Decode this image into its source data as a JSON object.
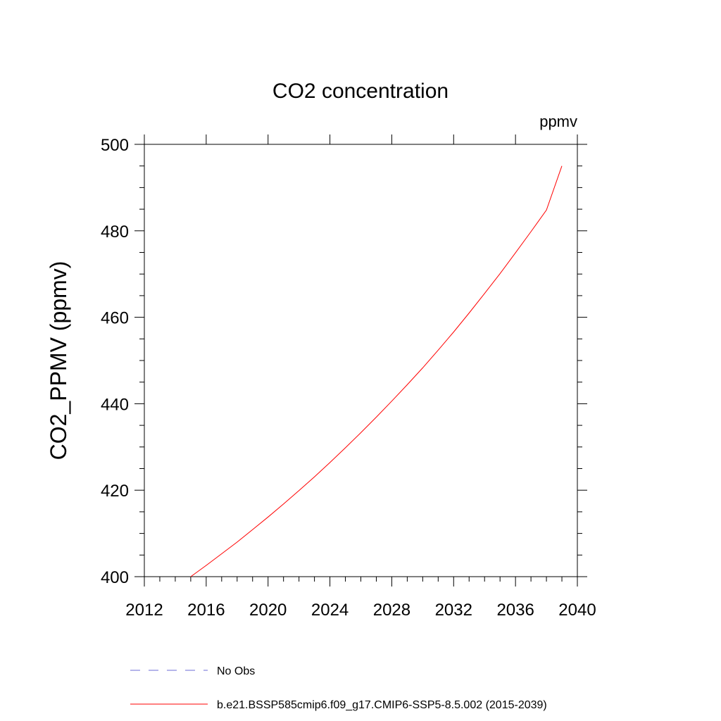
{
  "chart_data": {
    "type": "line",
    "title": "CO2 concentration",
    "units_label": "ppmv",
    "xlabel": "",
    "ylabel": "CO2_PPMV  (ppmv)",
    "xlim": [
      2012,
      2040
    ],
    "ylim": [
      400,
      500
    ],
    "x_ticks": [
      "2012",
      "2016",
      "2020",
      "2024",
      "2028",
      "2032",
      "2036",
      "2040"
    ],
    "y_ticks": [
      "400",
      "420",
      "440",
      "460",
      "480",
      "500"
    ],
    "grid": false,
    "legend_position": "bottom",
    "series": [
      {
        "name": "No Obs",
        "color": "#6b6bd6",
        "style": "dashed",
        "x": [],
        "y": []
      },
      {
        "name": "b.e21.BSSP585cmip6.f09_g17.CMIP6-SSP5-8.5.002 (2015-2039)",
        "color": "#ff0000",
        "style": "solid",
        "x": [
          2015,
          2016,
          2017,
          2018,
          2019,
          2020,
          2021,
          2022,
          2023,
          2024,
          2025,
          2026,
          2027,
          2028,
          2029,
          2030,
          2031,
          2032,
          2033,
          2034,
          2035,
          2036,
          2037,
          2038,
          2039
        ],
        "y": [
          400.0,
          402.6,
          405.3,
          408.0,
          410.9,
          413.8,
          416.8,
          419.9,
          423.1,
          426.4,
          429.8,
          433.3,
          436.9,
          440.6,
          444.4,
          448.3,
          452.4,
          456.6,
          461.0,
          465.5,
          470.1,
          474.9,
          479.8,
          484.8,
          495.0
        ]
      }
    ]
  }
}
